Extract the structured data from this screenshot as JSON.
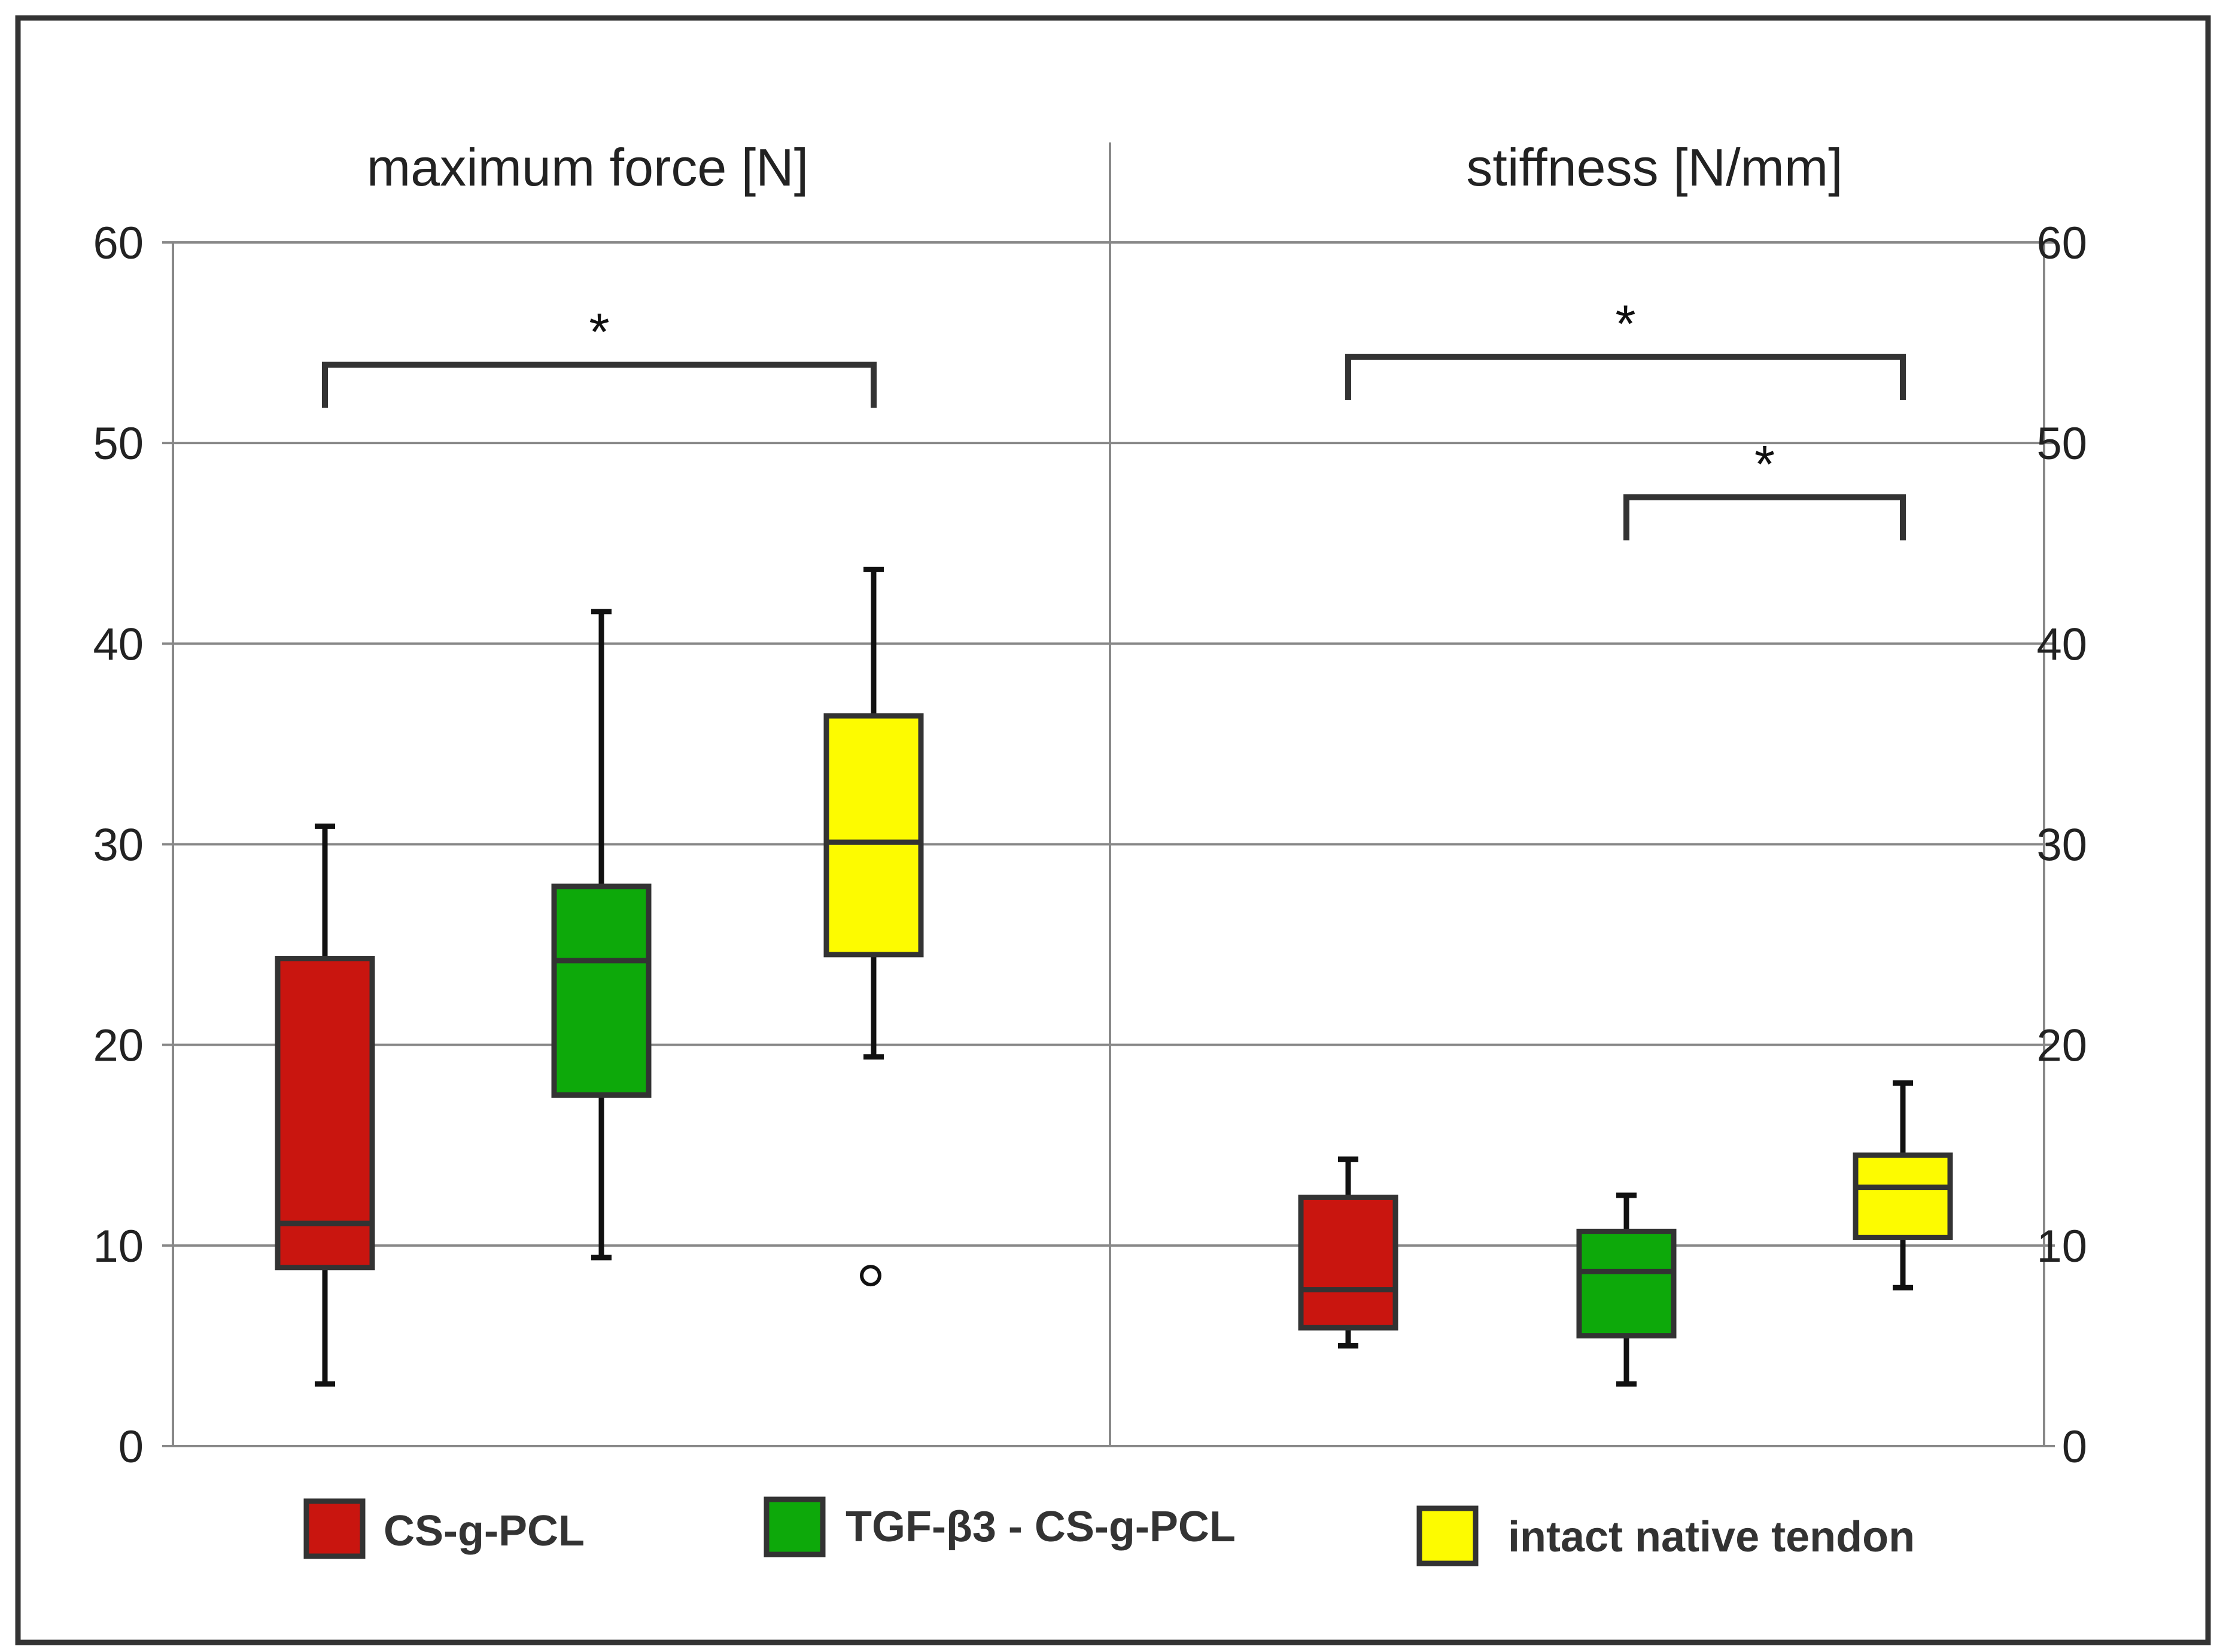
{
  "chart_data": {
    "type": "box",
    "y_range": [
      0,
      60
    ],
    "y_ticks": [
      0,
      10,
      20,
      30,
      40,
      50,
      60
    ],
    "y_tick_labels": [
      "0",
      "10",
      "20",
      "30",
      "40",
      "50",
      "60"
    ],
    "grid": true,
    "legend_position": "bottom",
    "panels": [
      {
        "title": "maximum force [N]",
        "axis_side": "left",
        "boxes": [
          {
            "group": "CS-g-PCL",
            "whisker_low": 3.1,
            "q1": 8.9,
            "median": 11.1,
            "q3": 24.3,
            "whisker_high": 30.9,
            "outliers": []
          },
          {
            "group": "TGF-β3 - CS-g-PCL",
            "whisker_low": 9.4,
            "q1": 17.5,
            "median": 24.2,
            "q3": 27.9,
            "whisker_high": 41.6,
            "outliers": []
          },
          {
            "group": "intact native tendon",
            "whisker_low": 19.4,
            "q1": 24.5,
            "median": 30.1,
            "q3": 36.4,
            "whisker_high": 43.7,
            "outliers": [
              8.5
            ]
          }
        ],
        "significance": [
          {
            "from": 0,
            "to": 2,
            "y": 53.9,
            "label": "*"
          }
        ]
      },
      {
        "title": "stiffness [N/mm]",
        "axis_side": "right",
        "boxes": [
          {
            "group": "CS-g-PCL",
            "whisker_low": 5.0,
            "q1": 5.9,
            "median": 7.8,
            "q3": 12.4,
            "whisker_high": 14.3,
            "outliers": []
          },
          {
            "group": "TGF-β3 - CS-g-PCL",
            "whisker_low": 3.1,
            "q1": 5.5,
            "median": 8.7,
            "q3": 10.7,
            "whisker_high": 12.5,
            "outliers": []
          },
          {
            "group": "intact native tendon",
            "whisker_low": 7.9,
            "q1": 10.4,
            "median": 12.9,
            "q3": 14.5,
            "whisker_high": 18.1,
            "outliers": []
          }
        ],
        "significance": [
          {
            "from": 0,
            "to": 2,
            "y": 54.3,
            "label": "*"
          },
          {
            "from": 1,
            "to": 2,
            "y": 47.3,
            "label": "*"
          }
        ]
      }
    ],
    "legend": [
      {
        "label": "CS-g-PCL",
        "color": "#c9150f"
      },
      {
        "label": "TGF-β3 - CS-g-PCL",
        "color": "#0da90a"
      },
      {
        "label": "intact native tendon",
        "color": "#fdfb00"
      }
    ]
  }
}
